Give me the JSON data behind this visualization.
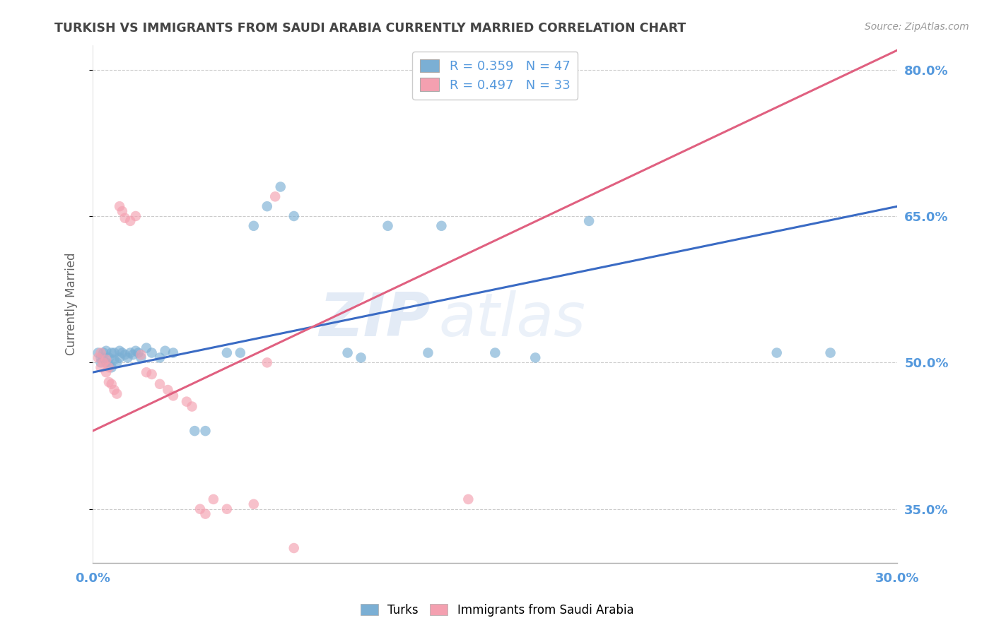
{
  "title": "TURKISH VS IMMIGRANTS FROM SAUDI ARABIA CURRENTLY MARRIED CORRELATION CHART",
  "source": "Source: ZipAtlas.com",
  "ylabel": "Currently Married",
  "watermark": "ZIPatlas",
  "xmin": 0.0,
  "xmax": 0.3,
  "ymin": 0.295,
  "ymax": 0.825,
  "yticks": [
    0.35,
    0.5,
    0.65,
    0.8
  ],
  "ytick_labels": [
    "35.0%",
    "50.0%",
    "65.0%",
    "80.0%"
  ],
  "xticks": [
    0.0,
    0.1,
    0.2,
    0.3
  ],
  "xtick_labels": [
    "0.0%",
    "",
    "",
    "30.0%"
  ],
  "legend_blue_r": "R = 0.359",
  "legend_blue_n": "N = 47",
  "legend_pink_r": "R = 0.497",
  "legend_pink_n": "N = 33",
  "blue_color": "#7BAFD4",
  "pink_color": "#F4A0B0",
  "line_blue": "#3A6BC4",
  "line_pink": "#E06080",
  "title_color": "#444444",
  "axis_label_color": "#5599DD",
  "grid_color": "#CCCCCC",
  "blue_scatter": [
    [
      0.002,
      0.51
    ],
    [
      0.003,
      0.505
    ],
    [
      0.003,
      0.5
    ],
    [
      0.004,
      0.51
    ],
    [
      0.004,
      0.505
    ],
    [
      0.005,
      0.512
    ],
    [
      0.005,
      0.5
    ],
    [
      0.006,
      0.498
    ],
    [
      0.006,
      0.505
    ],
    [
      0.007,
      0.51
    ],
    [
      0.007,
      0.495
    ],
    [
      0.008,
      0.51
    ],
    [
      0.008,
      0.503
    ],
    [
      0.009,
      0.5
    ],
    [
      0.01,
      0.505
    ],
    [
      0.01,
      0.512
    ],
    [
      0.011,
      0.51
    ],
    [
      0.012,
      0.508
    ],
    [
      0.013,
      0.505
    ],
    [
      0.014,
      0.51
    ],
    [
      0.015,
      0.508
    ],
    [
      0.016,
      0.512
    ],
    [
      0.017,
      0.51
    ],
    [
      0.018,
      0.505
    ],
    [
      0.02,
      0.515
    ],
    [
      0.022,
      0.51
    ],
    [
      0.025,
      0.505
    ],
    [
      0.027,
      0.512
    ],
    [
      0.03,
      0.51
    ],
    [
      0.038,
      0.43
    ],
    [
      0.042,
      0.43
    ],
    [
      0.05,
      0.51
    ],
    [
      0.055,
      0.51
    ],
    [
      0.06,
      0.64
    ],
    [
      0.065,
      0.66
    ],
    [
      0.07,
      0.68
    ],
    [
      0.075,
      0.65
    ],
    [
      0.095,
      0.51
    ],
    [
      0.1,
      0.505
    ],
    [
      0.11,
      0.64
    ],
    [
      0.125,
      0.51
    ],
    [
      0.13,
      0.64
    ],
    [
      0.15,
      0.51
    ],
    [
      0.165,
      0.505
    ],
    [
      0.185,
      0.645
    ],
    [
      0.255,
      0.51
    ],
    [
      0.275,
      0.51
    ]
  ],
  "pink_scatter": [
    [
      0.002,
      0.505
    ],
    [
      0.003,
      0.51
    ],
    [
      0.003,
      0.495
    ],
    [
      0.004,
      0.5
    ],
    [
      0.005,
      0.49
    ],
    [
      0.005,
      0.503
    ],
    [
      0.006,
      0.495
    ],
    [
      0.006,
      0.48
    ],
    [
      0.007,
      0.478
    ],
    [
      0.008,
      0.472
    ],
    [
      0.009,
      0.468
    ],
    [
      0.01,
      0.66
    ],
    [
      0.011,
      0.655
    ],
    [
      0.012,
      0.648
    ],
    [
      0.014,
      0.645
    ],
    [
      0.016,
      0.65
    ],
    [
      0.018,
      0.508
    ],
    [
      0.02,
      0.49
    ],
    [
      0.022,
      0.488
    ],
    [
      0.025,
      0.478
    ],
    [
      0.028,
      0.472
    ],
    [
      0.03,
      0.466
    ],
    [
      0.035,
      0.46
    ],
    [
      0.037,
      0.455
    ],
    [
      0.04,
      0.35
    ],
    [
      0.042,
      0.345
    ],
    [
      0.045,
      0.36
    ],
    [
      0.05,
      0.35
    ],
    [
      0.06,
      0.355
    ],
    [
      0.065,
      0.5
    ],
    [
      0.068,
      0.67
    ],
    [
      0.075,
      0.31
    ],
    [
      0.14,
      0.36
    ]
  ],
  "blue_line_x": [
    0.0,
    0.3
  ],
  "blue_line_y": [
    0.49,
    0.66
  ],
  "pink_line_x": [
    0.0,
    0.3
  ],
  "pink_line_y": [
    0.43,
    0.82
  ],
  "figsize": [
    14.06,
    8.92
  ],
  "dpi": 100
}
